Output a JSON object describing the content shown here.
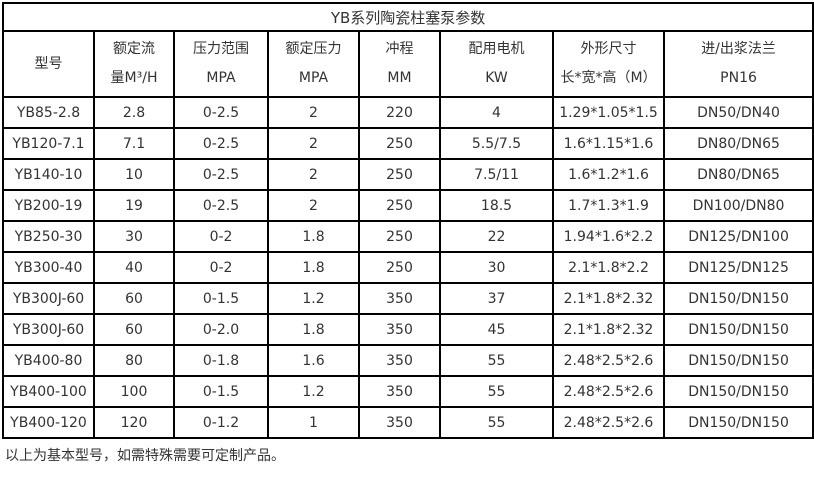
{
  "title": "YB系列陶瓷柱塞泵参数",
  "colors": {
    "text": "#333333",
    "border": "#000000",
    "background": "#ffffff"
  },
  "table": {
    "columns": [
      {
        "line1": "型号",
        "line2": ""
      },
      {
        "line1": "额定流",
        "line2": "量M³/H"
      },
      {
        "line1": "压力范围",
        "line2": "MPA"
      },
      {
        "line1": "额定压力",
        "line2": "MPA"
      },
      {
        "line1": "冲程",
        "line2": "MM"
      },
      {
        "line1": "配用电机",
        "line2": "KW"
      },
      {
        "line1": "外形尺寸",
        "line2": "长*宽*高（M）"
      },
      {
        "line1": "进/出浆法兰",
        "line2": "PN16"
      }
    ],
    "rows": [
      [
        "YB85-2.8",
        "2.8",
        "0-2.5",
        "2",
        "220",
        "4",
        "1.29*1.05*1.5",
        "DN50/DN40"
      ],
      [
        "YB120-7.1",
        "7.1",
        "0-2.5",
        "2",
        "250",
        "5.5/7.5",
        "1.6*1.15*1.6",
        "DN80/DN65"
      ],
      [
        "YB140-10",
        "10",
        "0-2.5",
        "2",
        "250",
        "7.5/11",
        "1.6*1.2*1.6",
        "DN80/DN65"
      ],
      [
        "YB200-19",
        "19",
        "0-2.5",
        "2",
        "250",
        "18.5",
        "1.7*1.3*1.9",
        "DN100/DN80"
      ],
      [
        "YB250-30",
        "30",
        "0-2",
        "1.8",
        "250",
        "22",
        "1.94*1.6*2.2",
        "DN125/DN100"
      ],
      [
        "YB300-40",
        "40",
        "0-2",
        "1.8",
        "250",
        "30",
        "2.1*1.8*2.2",
        "DN125/DN125"
      ],
      [
        "YB300J-60",
        "60",
        "0-1.5",
        "1.2",
        "350",
        "37",
        "2.1*1.8*2.32",
        "DN150/DN150"
      ],
      [
        "YB300J-60",
        "60",
        "0-2.0",
        "1.8",
        "350",
        "45",
        "2.1*1.8*2.32",
        "DN150/DN150"
      ],
      [
        "YB400-80",
        "80",
        "0-1.8",
        "1.6",
        "350",
        "55",
        "2.48*2.5*2.6",
        "DN150/DN150"
      ],
      [
        "YB400-100",
        "100",
        "0-1.5",
        "1.2",
        "350",
        "55",
        "2.48*2.5*2.6",
        "DN150/DN150"
      ],
      [
        "YB400-120",
        "120",
        "0-1.2",
        "1",
        "350",
        "55",
        "2.48*2.5*2.6",
        "DN150/DN150"
      ]
    ]
  },
  "footer_note": "以上为基本型号，如需特殊需要可定制产品。"
}
